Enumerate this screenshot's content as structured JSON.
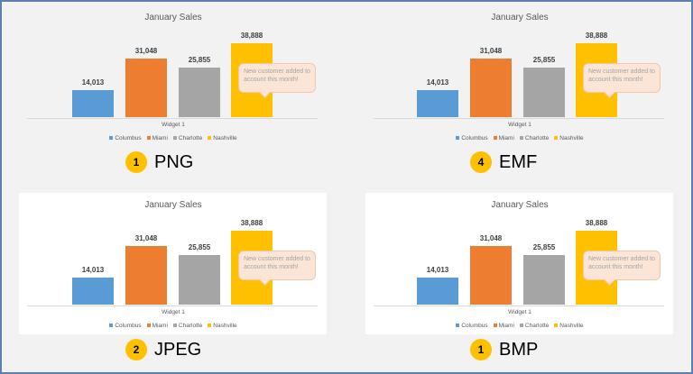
{
  "chart_data": [
    {
      "type": "bar",
      "title": "January Sales",
      "categories": [
        "Widget 1"
      ],
      "series": [
        {
          "name": "Columbus",
          "values": [
            14013
          ],
          "label": "14,013",
          "color": "#5b9bd5"
        },
        {
          "name": "Miami",
          "values": [
            31048
          ],
          "label": "31,048",
          "color": "#ed7d31"
        },
        {
          "name": "Charlotte",
          "values": [
            25855
          ],
          "label": "25,855",
          "color": "#a5a5a5"
        },
        {
          "name": "Nashville",
          "values": [
            38888
          ],
          "label": "38,888",
          "color": "#ffc000"
        }
      ],
      "annotation": "New customer added to account this month!",
      "legend": "bottom",
      "background": "#f2f2f2",
      "ylim": [
        0,
        40000
      ],
      "grid": false
    },
    {
      "type": "bar",
      "title": "January Sales",
      "categories": [
        "Widget 1"
      ],
      "series": [
        {
          "name": "Columbus",
          "values": [
            14013
          ],
          "label": "14,013",
          "color": "#5b9bd5"
        },
        {
          "name": "Miami",
          "values": [
            31048
          ],
          "label": "31,048",
          "color": "#ed7d31"
        },
        {
          "name": "Charlotte",
          "values": [
            25855
          ],
          "label": "25,855",
          "color": "#a5a5a5"
        },
        {
          "name": "Nashville",
          "values": [
            38888
          ],
          "label": "38,888",
          "color": "#ffc000"
        }
      ],
      "annotation": "New customer added to account this month!",
      "legend": "bottom",
      "background": "#f2f2f2",
      "ylim": [
        0,
        40000
      ],
      "grid": false
    },
    {
      "type": "bar",
      "title": "January Sales",
      "categories": [
        "Widget 1"
      ],
      "series": [
        {
          "name": "Columbus",
          "values": [
            14013
          ],
          "label": "14,013",
          "color": "#5b9bd5"
        },
        {
          "name": "Miami",
          "values": [
            31048
          ],
          "label": "31,048",
          "color": "#ed7d31"
        },
        {
          "name": "Charlotte",
          "values": [
            25855
          ],
          "label": "25,855",
          "color": "#a5a5a5"
        },
        {
          "name": "Nashville",
          "values": [
            38888
          ],
          "label": "38,888",
          "color": "#ffc000"
        }
      ],
      "annotation": "New customer added to account this month!",
      "legend": "bottom",
      "background": "#ffffff",
      "ylim": [
        0,
        40000
      ],
      "grid": false
    },
    {
      "type": "bar",
      "title": "January Sales",
      "categories": [
        "Widget 1"
      ],
      "series": [
        {
          "name": "Columbus",
          "values": [
            14013
          ],
          "label": "14,013",
          "color": "#5b9bd5"
        },
        {
          "name": "Miami",
          "values": [
            31048
          ],
          "label": "31,048",
          "color": "#ed7d31"
        },
        {
          "name": "Charlotte",
          "values": [
            25855
          ],
          "label": "25,855",
          "color": "#a5a5a5"
        },
        {
          "name": "Nashville",
          "values": [
            38888
          ],
          "label": "38,888",
          "color": "#ffc000"
        }
      ],
      "annotation": "New customer added to account this month!",
      "legend": "bottom",
      "background": "#ffffff",
      "ylim": [
        0,
        40000
      ],
      "grid": false
    }
  ],
  "panels": [
    {
      "badge": "1",
      "format": "PNG"
    },
    {
      "badge": "4",
      "format": "EMF"
    },
    {
      "badge": "2",
      "format": "JPEG"
    },
    {
      "badge": "1",
      "format": "BMP"
    }
  ],
  "colors": {
    "badge": "#ffc000",
    "frame": "#5b7fb0"
  }
}
